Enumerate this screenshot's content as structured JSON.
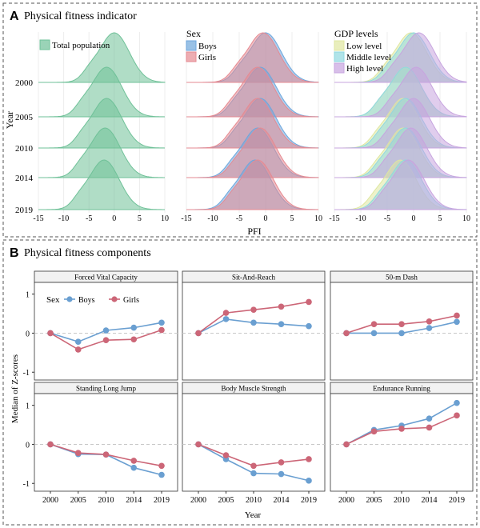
{
  "panelA": {
    "letter": "A",
    "title": "Physical fitness indicator",
    "ylabel": "Year",
    "xlabel": "PFI",
    "years": [
      "2000",
      "2005",
      "2010",
      "2014",
      "2019"
    ],
    "xticks": [
      -15,
      -10,
      -5,
      0,
      5,
      10
    ],
    "subpanels": [
      {
        "legend_title": "",
        "legend": [
          "Total population"
        ],
        "colors": [
          "#6fc198"
        ]
      },
      {
        "legend_title": "Sex",
        "legend": [
          "Boys",
          "Girls"
        ],
        "colors": [
          "#6ea6dc",
          "#e58a92"
        ]
      },
      {
        "legend_title": "GDP levels",
        "legend": [
          "Low level",
          "Middle level",
          "High level"
        ],
        "colors": [
          "#dfe7a0",
          "#8fd8e0",
          "#c7a4df"
        ]
      }
    ]
  },
  "panelB": {
    "letter": "B",
    "title": "Physical fitness components",
    "ylabel": "Median of Z-scores",
    "xlabel": "Year",
    "legend_title": "Sex",
    "legend": [
      "Boys",
      "Girls"
    ]
  },
  "colors": {
    "boys": "#6a9fd1",
    "girls": "#cc6677",
    "grid_zero": "#c8c8c8",
    "border": "#555555"
  },
  "chart_data": [
    {
      "type": "area",
      "title": "Physical fitness indicator (density ridgelines)",
      "xlabel": "PFI",
      "ylabel": "Year",
      "xlim": [
        -15,
        10
      ],
      "categories": [
        "2000",
        "2005",
        "2010",
        "2014",
        "2019"
      ],
      "series": [
        {
          "name": "Total population",
          "mode": [
            0.0,
            -1.5,
            -1.5,
            -1.8,
            -2.0
          ]
        },
        {
          "name": "Boys",
          "mode": [
            0.0,
            -1.0,
            -1.0,
            -1.5,
            -2.0
          ]
        },
        {
          "name": "Girls",
          "mode": [
            -0.5,
            -1.5,
            -1.5,
            -1.0,
            -1.5
          ]
        },
        {
          "name": "Low level",
          "mode": [
            -0.5,
            -1.5,
            -2.0,
            -2.0,
            -2.5
          ]
        },
        {
          "name": "Middle level",
          "mode": [
            0.0,
            -1.5,
            -1.5,
            -1.5,
            -1.5
          ]
        },
        {
          "name": "High level",
          "mode": [
            1.0,
            0.5,
            0.0,
            -0.5,
            -1.0
          ]
        }
      ]
    },
    {
      "type": "line",
      "categories": [
        "2000",
        "2005",
        "2010",
        "2014",
        "2019"
      ],
      "ylim": [
        -1.2,
        1.3
      ],
      "yticks": [
        -1,
        0,
        1
      ],
      "panels": [
        {
          "title": "Forced Vital Capacity",
          "series": [
            {
              "name": "Boys",
              "values": [
                0,
                -0.22,
                0.07,
                0.14,
                0.27
              ]
            },
            {
              "name": "Girls",
              "values": [
                0,
                -0.42,
                -0.18,
                -0.16,
                0.08
              ]
            }
          ]
        },
        {
          "title": "Sit-And-Reach",
          "series": [
            {
              "name": "Boys",
              "values": [
                0,
                0.36,
                0.27,
                0.23,
                0.18
              ]
            },
            {
              "name": "Girls",
              "values": [
                0,
                0.52,
                0.6,
                0.68,
                0.8
              ]
            }
          ]
        },
        {
          "title": "50-m Dash",
          "series": [
            {
              "name": "Boys",
              "values": [
                0,
                0.0,
                0.0,
                0.13,
                0.29
              ]
            },
            {
              "name": "Girls",
              "values": [
                0,
                0.23,
                0.23,
                0.3,
                0.45
              ]
            }
          ]
        },
        {
          "title": "Standing Long Jump",
          "series": [
            {
              "name": "Boys",
              "values": [
                0,
                -0.25,
                -0.26,
                -0.6,
                -0.78
              ]
            },
            {
              "name": "Girls",
              "values": [
                0,
                -0.22,
                -0.26,
                -0.42,
                -0.55
              ]
            }
          ]
        },
        {
          "title": "Body Muscle Strength",
          "series": [
            {
              "name": "Boys",
              "values": [
                0,
                -0.38,
                -0.74,
                -0.76,
                -0.93
              ]
            },
            {
              "name": "Girls",
              "values": [
                0,
                -0.28,
                -0.55,
                -0.46,
                -0.38
              ]
            }
          ]
        },
        {
          "title": "Endurance Running",
          "series": [
            {
              "name": "Boys",
              "values": [
                0,
                0.37,
                0.48,
                0.66,
                1.06
              ]
            },
            {
              "name": "Girls",
              "values": [
                0,
                0.33,
                0.4,
                0.43,
                0.74
              ]
            }
          ]
        }
      ]
    }
  ]
}
